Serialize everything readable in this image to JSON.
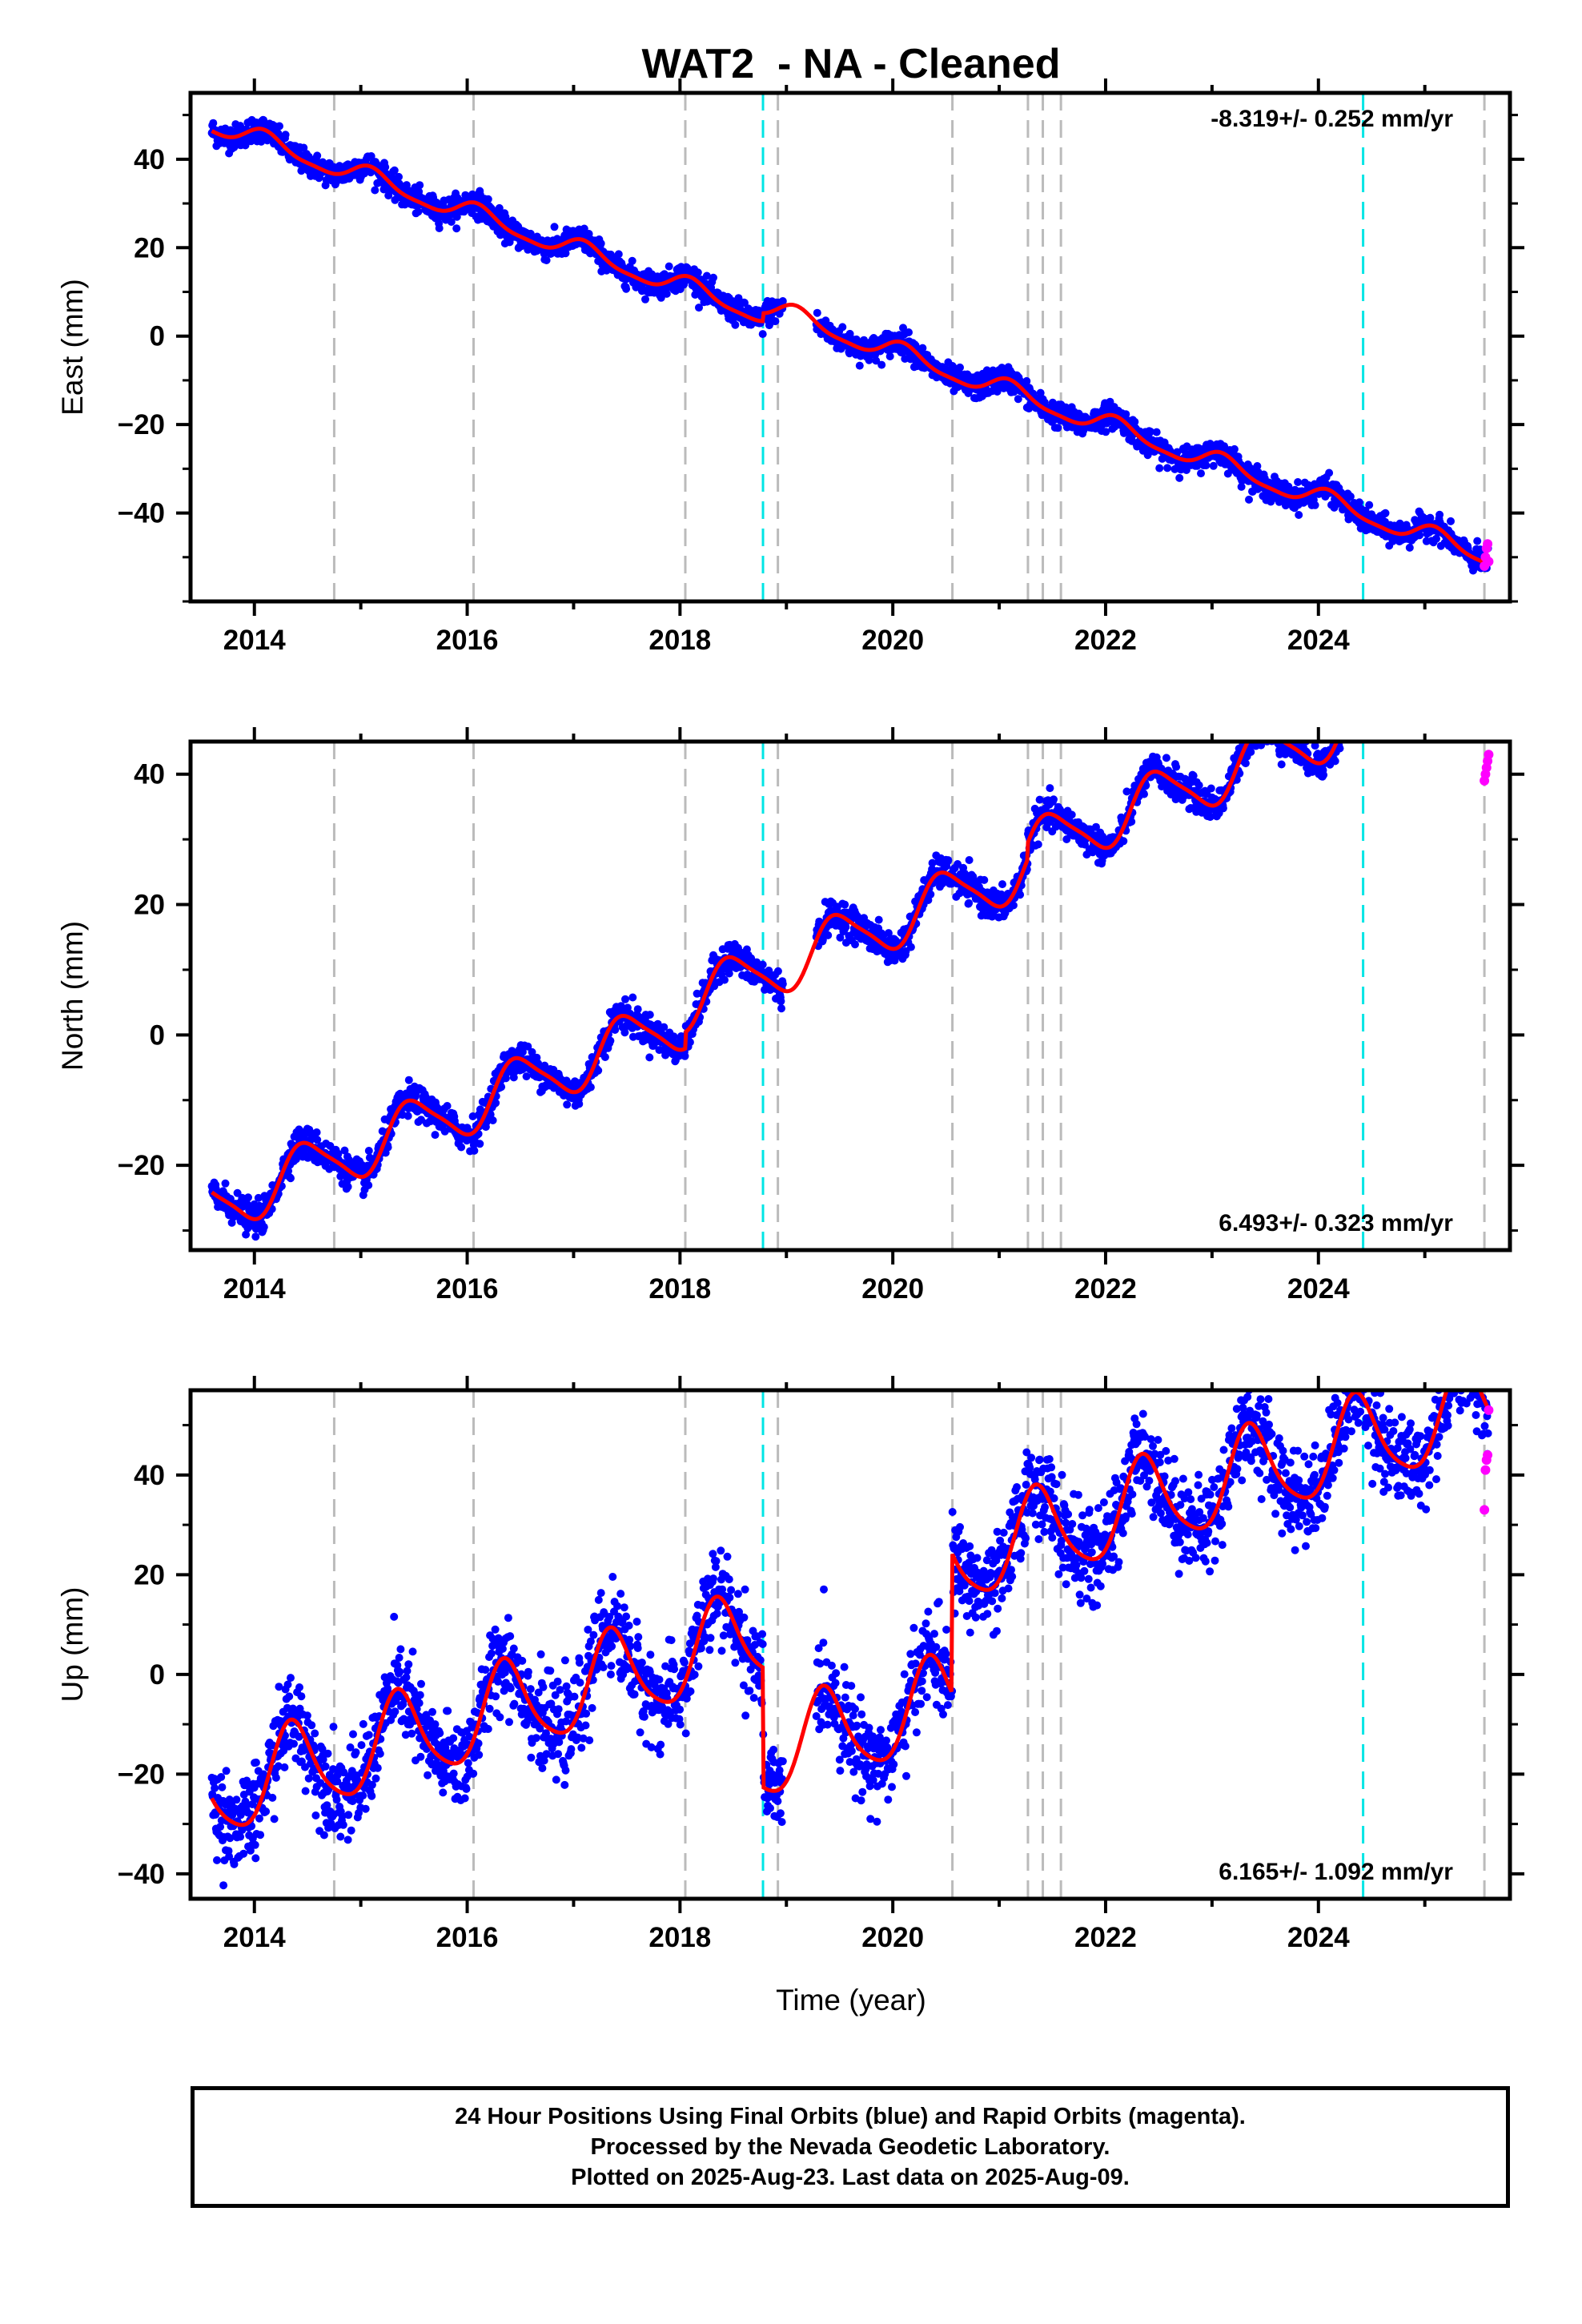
{
  "title": "WAT2  - NA - Cleaned",
  "xlabel": "Time (year)",
  "colors": {
    "final": "#0000ff",
    "rapid": "#ff00ff",
    "model": "#ff0000",
    "event_gray": "#bbbbbb",
    "event_cyan": "#00e5e5"
  },
  "footer": {
    "line1": "24 Hour Positions Using Final Orbits (blue) and Rapid Orbits (magenta).",
    "line2": "Processed by the Nevada Geodetic Laboratory.",
    "line3": "Plotted on 2025-Aug-23. Last data on 2025-Aug-09."
  },
  "chart_data": [
    {
      "type": "scatter",
      "name": "east",
      "ylabel": "East (mm)",
      "rate_label": "-8.319+/- 0.252 mm/yr",
      "rate_position": "top-right",
      "xlim": [
        2013.4,
        2025.8
      ],
      "ylim": [
        -60,
        55
      ],
      "xticks": [
        2014,
        2016,
        2018,
        2020,
        2022,
        2024
      ],
      "yticks": [
        -40,
        -20,
        0,
        20,
        40
      ],
      "gray_events": [
        2014.75,
        2016.06,
        2018.05,
        2018.92,
        2020.56,
        2021.27,
        2021.41,
        2021.58,
        2025.56
      ],
      "cyan_events": [
        2018.78,
        2024.42
      ],
      "model": {
        "trend": -8.319,
        "offset": 48.0,
        "annual_amp": 2.2,
        "annual_phase": 0.9,
        "semiannual_amp": 0.6,
        "steps": [
          {
            "t": 2018.78,
            "d": 1.8
          }
        ],
        "start": 2013.6,
        "end": 2025.6,
        "noise": 1.4
      },
      "gaps": [
        [
          2018.97,
          2019.28
        ]
      ],
      "rapid": {
        "t": [
          2025.56,
          2025.57,
          2025.58,
          2025.59,
          2025.6
        ],
        "y": [
          -52,
          -50,
          -48,
          -47,
          -51
        ]
      }
    },
    {
      "type": "scatter",
      "name": "north",
      "ylabel": "North (mm)",
      "rate_label": "6.493+/- 0.323 mm/yr",
      "rate_position": "bottom-right",
      "xlim": [
        2013.4,
        2025.8
      ],
      "ylim": [
        -33,
        45
      ],
      "xticks": [
        2014,
        2016,
        2018,
        2020,
        2022,
        2024
      ],
      "yticks": [
        -20,
        0,
        20,
        40
      ],
      "gray_events": [
        2014.75,
        2016.06,
        2018.05,
        2018.92,
        2020.56,
        2021.27,
        2021.41,
        2021.58,
        2025.56
      ],
      "cyan_events": [
        2018.78,
        2024.42
      ],
      "model": {
        "trend": 6.493,
        "offset": -26.5,
        "annual_amp": 4.2,
        "annual_phase": 4.8,
        "semiannual_amp": 0.8,
        "steps": [
          {
            "t": 2018.05,
            "d": 2.5
          },
          {
            "t": 2021.27,
            "d": 2.5
          }
        ],
        "start": 2013.6,
        "end": 2025.6,
        "noise": 1.2
      },
      "gaps": [
        [
          2018.97,
          2019.28
        ]
      ],
      "rapid": {
        "t": [
          2025.56,
          2025.57,
          2025.58,
          2025.59,
          2025.6
        ],
        "y": [
          39,
          40,
          41,
          42,
          43
        ]
      }
    },
    {
      "type": "scatter",
      "name": "up",
      "ylabel": "Up (mm)",
      "rate_label": "6.165+/- 1.092 mm/yr",
      "rate_position": "bottom-right",
      "xlim": [
        2013.4,
        2025.8
      ],
      "ylim": [
        -45,
        57
      ],
      "xticks": [
        2014,
        2016,
        2018,
        2020,
        2022,
        2024
      ],
      "yticks": [
        -40,
        -20,
        0,
        20,
        40
      ],
      "gray_events": [
        2014.75,
        2016.06,
        2018.05,
        2018.92,
        2020.56,
        2021.27,
        2021.41,
        2021.58,
        2025.56
      ],
      "cyan_events": [
        2018.78,
        2024.42
      ],
      "model": {
        "trend": 6.165,
        "offset": -24.0,
        "annual_amp": 9.0,
        "annual_phase": 5.6,
        "semiannual_amp": 1.5,
        "steps": [
          {
            "t": 2018.78,
            "d": -24.0
          },
          {
            "t": 2020.56,
            "d": 28.0
          }
        ],
        "start": 2013.6,
        "end": 2025.6,
        "noise": 4.5
      },
      "gaps": [
        [
          2018.97,
          2019.28
        ]
      ],
      "rapid": {
        "t": [
          2025.56,
          2025.57,
          2025.58,
          2025.59,
          2025.6
        ],
        "y": [
          33,
          41,
          43,
          44,
          53
        ]
      }
    }
  ]
}
